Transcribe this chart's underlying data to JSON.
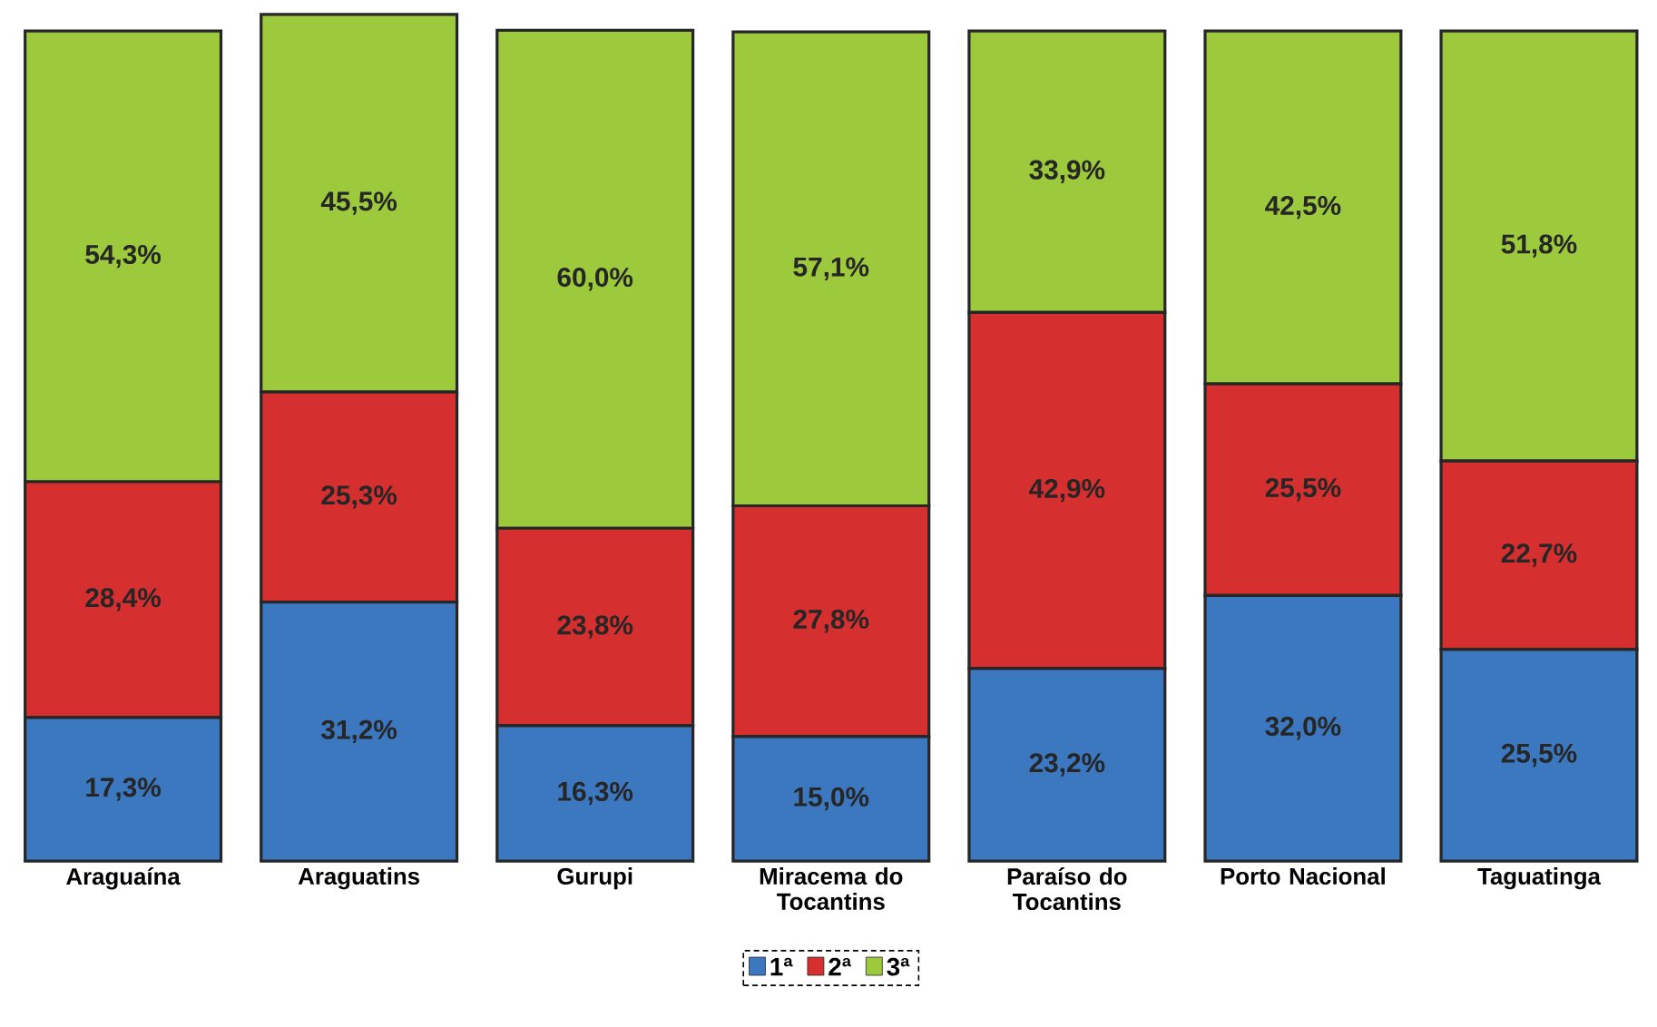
{
  "chart_data": {
    "type": "bar",
    "stacked": true,
    "categories": [
      "Araguaína",
      "Araguatins",
      "Gurupi",
      "Miracema do Tocantins",
      "Paraíso do Tocantins",
      "Porto Nacional",
      "Taguatinga"
    ],
    "series": [
      {
        "name": "1ª",
        "color": "#3b78bf",
        "values": [
          17.3,
          31.2,
          16.3,
          15.0,
          23.2,
          32.0,
          25.5
        ],
        "value_labels": [
          "17,3%",
          "31,2%",
          "16,3%",
          "15,0%",
          "23,2%",
          "32,0%",
          "25,5%"
        ]
      },
      {
        "name": "2ª",
        "color": "#d62f2f",
        "values": [
          28.4,
          25.3,
          23.8,
          27.8,
          42.9,
          25.5,
          22.7
        ],
        "value_labels": [
          "28,4%",
          "25,3%",
          "23,8%",
          "27,8%",
          "42,9%",
          "25,5%",
          "22,7%"
        ]
      },
      {
        "name": "3ª",
        "color": "#9dc93d",
        "values": [
          54.3,
          45.5,
          60.0,
          57.1,
          33.9,
          42.5,
          51.8
        ],
        "value_labels": [
          "54,3%",
          "45,5%",
          "60,0%",
          "57,1%",
          "33,9%",
          "42,5%",
          "51,8%"
        ]
      }
    ],
    "legend": "bottom"
  }
}
